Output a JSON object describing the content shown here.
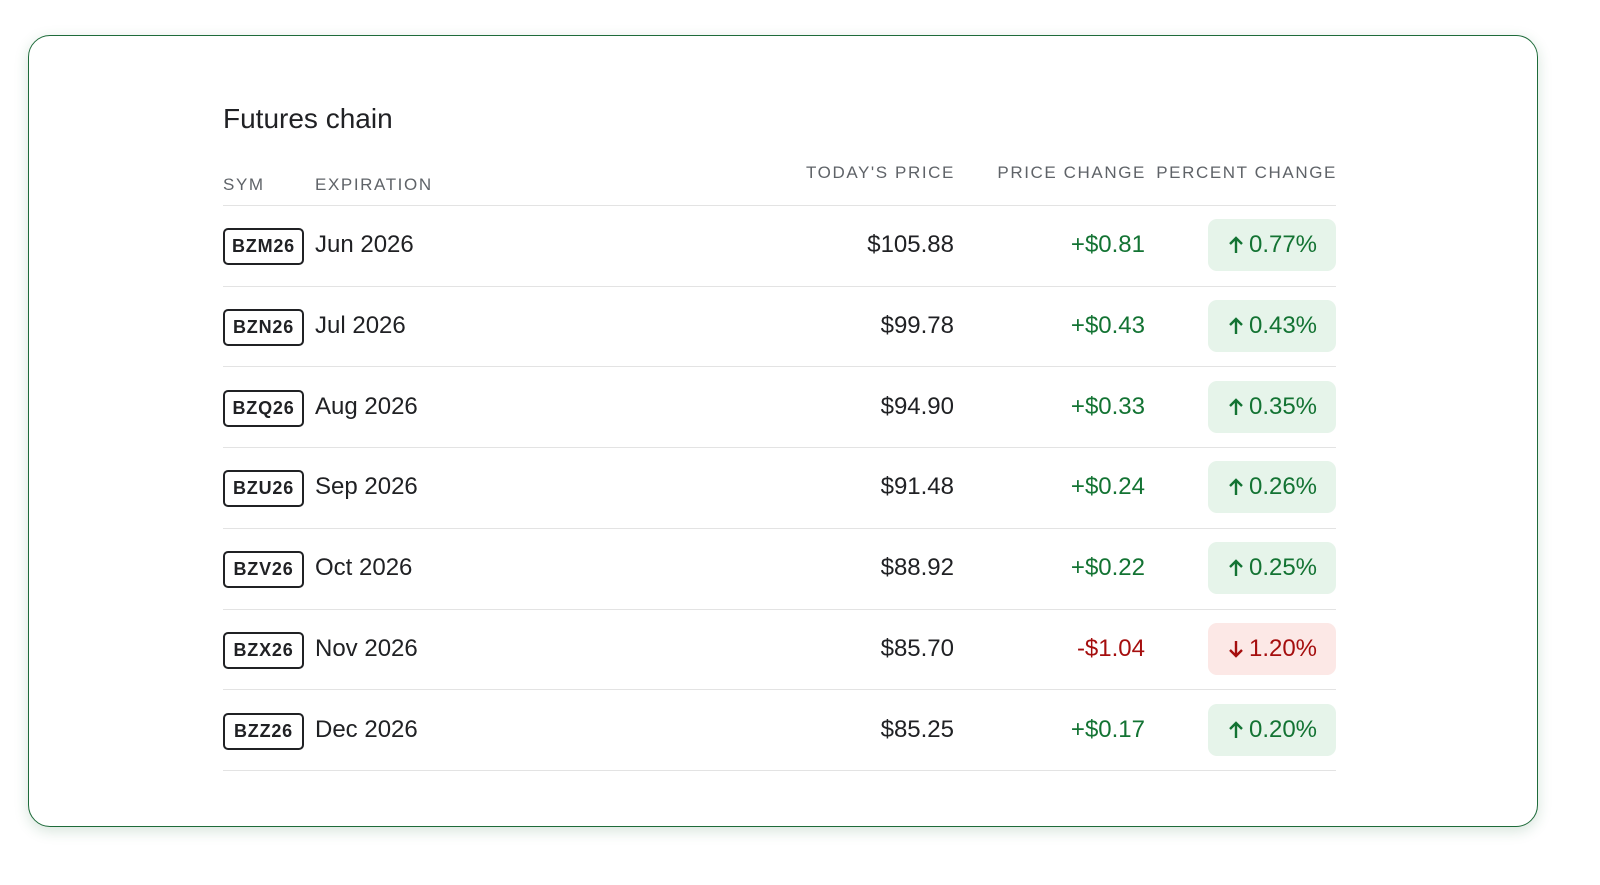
{
  "header": {
    "title": "Futures chain"
  },
  "table": {
    "columns": [
      "SYM",
      "EXPIRATION",
      "TODAY'S PRICE",
      "PRICE CHANGE",
      "PERCENT CHANGE"
    ],
    "rows": [
      [
        "BZM26",
        "Jun 2026",
        "$105.88",
        "+$0.81",
        "0.77%"
      ],
      [
        "BZN26",
        "Jul 2026",
        "$99.78",
        "+$0.43",
        "0.43%"
      ],
      [
        "BZQ26",
        "Aug 2026",
        "$94.90",
        "+$0.33",
        "0.35%"
      ],
      [
        "BZU26",
        "Sep 2026",
        "$91.48",
        "+$0.24",
        "0.26%"
      ],
      [
        "BZV26",
        "Oct 2026",
        "$88.92",
        "+$0.22",
        "0.25%"
      ],
      [
        "BZX26",
        "Nov 2026",
        "$85.70",
        "-$1.04",
        "1.20%"
      ],
      [
        "BZZ26",
        "Dec 2026",
        "$85.25",
        "+$0.17",
        "0.20%"
      ]
    ]
  }
}
